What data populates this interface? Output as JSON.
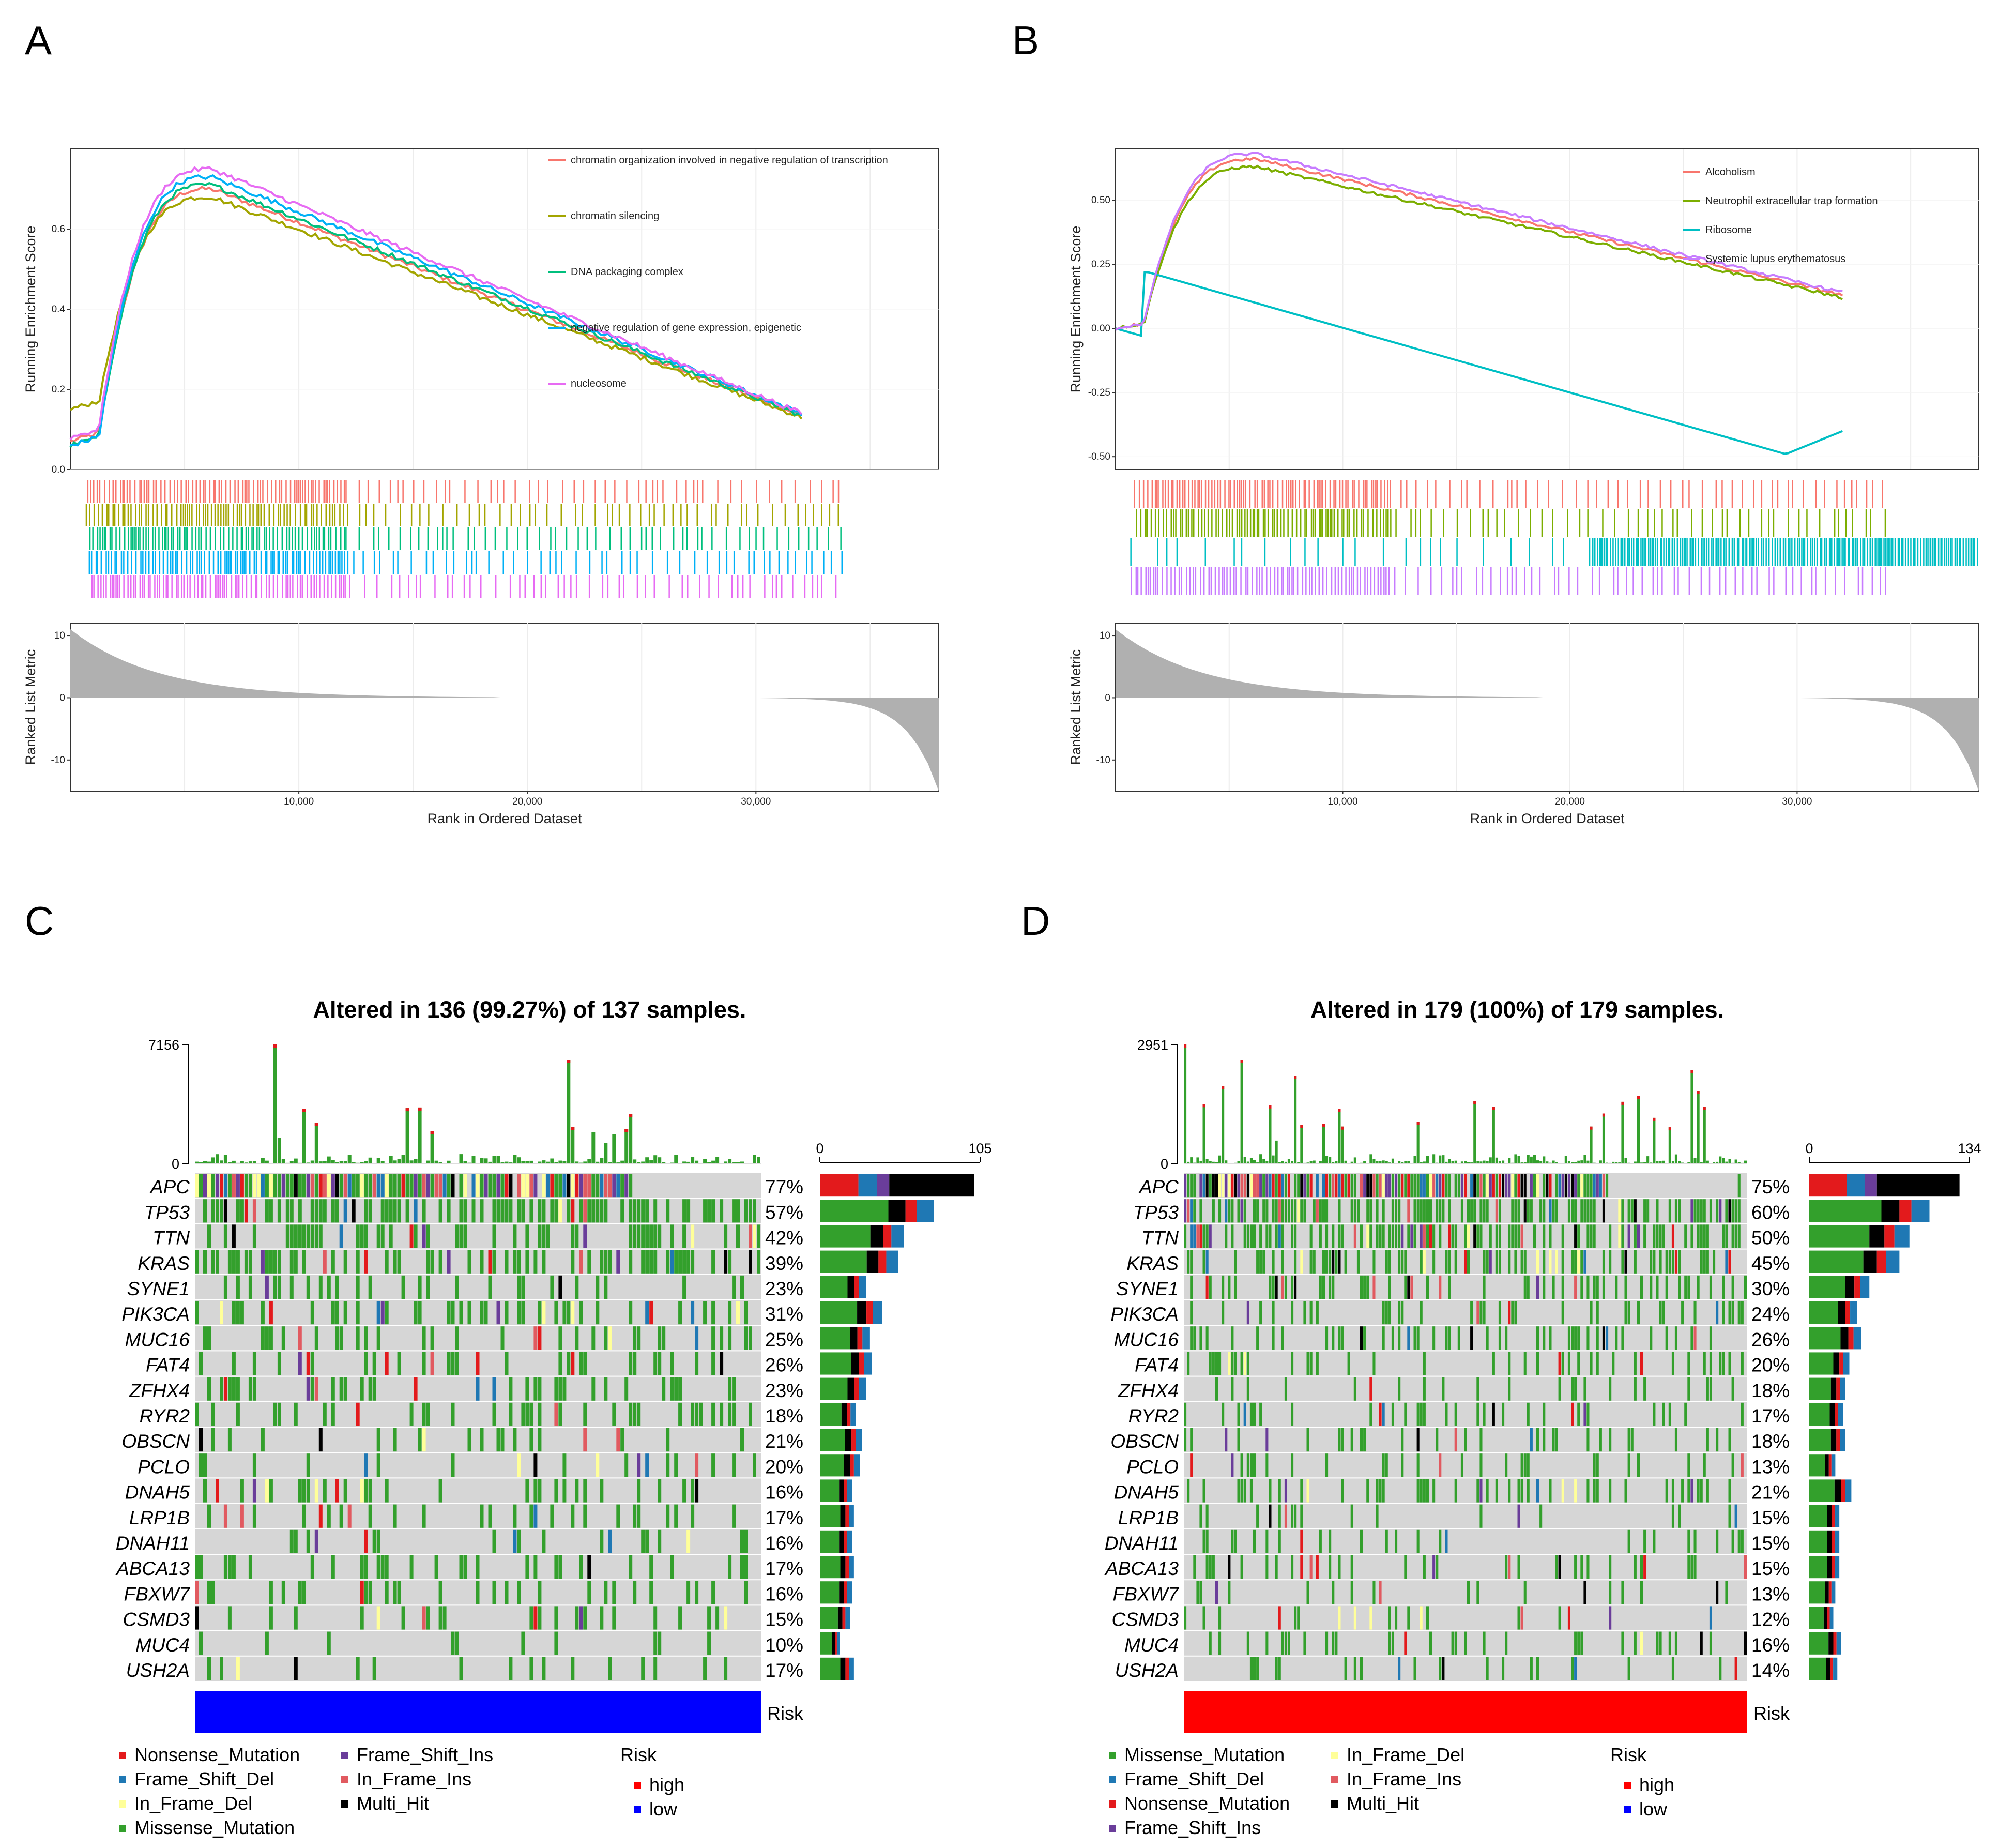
{
  "panel_labels": [
    "A",
    "B",
    "C",
    "D"
  ],
  "chart_data": [
    {
      "type": "line",
      "panel": "A",
      "ylabel": "Running Enrichment Score",
      "xlabel": "Rank in Ordered Dataset",
      "metric_label": "Ranked List Metric",
      "ylim": [
        0,
        0.8
      ],
      "yticks": [
        0.0,
        0.2,
        0.4,
        0.6
      ],
      "ytick_labels": [
        "0.0",
        "0.2",
        "0.4",
        "0.6"
      ],
      "xlim": [
        0,
        38000
      ],
      "xticks": [
        10000,
        20000,
        30000
      ],
      "xtick_labels": [
        "10,000",
        "20,000",
        "30,000"
      ],
      "metric_ylim": [
        -15,
        12
      ],
      "metric_ticks": [
        10,
        0,
        -10
      ],
      "metric_tick_labels": [
        "10",
        "0",
        "-10"
      ],
      "metric_start": 11,
      "metric_end": -15,
      "series": [
        {
          "name": "chromatin organization involved in negative regulation of transcription",
          "color": "#F8766D",
          "peak": 0.7,
          "start": 0.07,
          "end": 0.135
        },
        {
          "name": "chromatin silencing",
          "color": "#A3A500",
          "peak": 0.68,
          "start": 0.15,
          "end": 0.13
        },
        {
          "name": "DNA packaging complex",
          "color": "#00BF7D",
          "peak": 0.71,
          "start": 0.06,
          "end": 0.135
        },
        {
          "name": "negative regulation of gene expression, epigenetic",
          "color": "#00B0F6",
          "peak": 0.73,
          "start": 0.06,
          "end": 0.14
        },
        {
          "name": "nucleosome",
          "color": "#E76BF3",
          "peak": 0.75,
          "start": 0.08,
          "end": 0.14
        }
      ]
    },
    {
      "type": "line",
      "panel": "B",
      "ylabel": "Running Enrichment Score",
      "xlabel": "Rank in Ordered Dataset",
      "metric_label": "Ranked List Metric",
      "ylim": [
        -0.55,
        0.7
      ],
      "yticks": [
        -0.5,
        -0.25,
        0.0,
        0.25,
        0.5
      ],
      "ytick_labels": [
        "-0.50",
        "-0.25",
        "0.00",
        "0.25",
        "0.50"
      ],
      "xlim": [
        0,
        38000
      ],
      "xticks": [
        10000,
        20000,
        30000
      ],
      "xtick_labels": [
        "10,000",
        "20,000",
        "30,000"
      ],
      "metric_ylim": [
        -15,
        12
      ],
      "metric_ticks": [
        10,
        0,
        -10
      ],
      "metric_tick_labels": [
        "10",
        "0",
        "-10"
      ],
      "metric_start": 11,
      "metric_end": -15,
      "series": [
        {
          "name": "Alcoholism",
          "color": "#F8766D",
          "peak": 0.66,
          "end": 0.13
        },
        {
          "name": "Neutrophil extracellular trap formation",
          "color": "#7CAE00",
          "peak": 0.63,
          "end": 0.12
        },
        {
          "name": "Ribosome",
          "color": "#00BFC4",
          "peak": 0.22,
          "min": -0.49,
          "end": -0.4
        },
        {
          "name": "Systemic lupus erythematosus",
          "color": "#C77CFF",
          "peak": 0.68,
          "end": 0.14
        }
      ]
    },
    {
      "type": "heatmap",
      "panel": "C",
      "title": "Altered in 136 (99.27%) of 137 samples.",
      "tmb_max": "7156",
      "tmb_min": "0",
      "bar_max": "105",
      "bar_min": "0",
      "risk_label": "Risk",
      "risk_color": "#0000FF",
      "genes": [
        "APC",
        "TP53",
        "TTN",
        "KRAS",
        "SYNE1",
        "PIK3CA",
        "MUC16",
        "FAT4",
        "ZFHX4",
        "RYR2",
        "OBSCN",
        "PCLO",
        "DNAH5",
        "LRP1B",
        "DNAH11",
        "ABCA13",
        "FBXW7",
        "CSMD3",
        "MUC4",
        "USH2A"
      ],
      "percents": [
        "77%",
        "57%",
        "42%",
        "39%",
        "23%",
        "31%",
        "25%",
        "26%",
        "23%",
        "18%",
        "21%",
        "20%",
        "16%",
        "17%",
        "16%",
        "17%",
        "16%",
        "15%",
        "10%",
        "17%"
      ],
      "legend_items": [
        {
          "label": "Nonsense_Mutation",
          "color": "#E31A1C"
        },
        {
          "label": "Frame_Shift_Ins",
          "color": "#6A3D9A"
        },
        {
          "label": "Frame_Shift_Del",
          "color": "#1F78B4"
        },
        {
          "label": "In_Frame_Ins",
          "color": "#E15A60"
        },
        {
          "label": "In_Frame_Del",
          "color": "#FFFF99"
        },
        {
          "label": "Multi_Hit",
          "color": "#000000"
        },
        {
          "label": "Missense_Mutation",
          "color": "#33A02C"
        }
      ],
      "risk_legend": {
        "title": "Risk",
        "items": [
          {
            "label": "high",
            "color": "#FF0000"
          },
          {
            "label": "low",
            "color": "#0000FF"
          }
        ]
      }
    },
    {
      "type": "heatmap",
      "panel": "D",
      "title": "Altered in 179 (100%) of 179 samples.",
      "tmb_max": "2951",
      "tmb_min": "0",
      "bar_max": "134",
      "bar_min": "0",
      "risk_label": "Risk",
      "risk_color": "#FF0000",
      "genes": [
        "APC",
        "TP53",
        "TTN",
        "KRAS",
        "SYNE1",
        "PIK3CA",
        "MUC16",
        "FAT4",
        "ZFHX4",
        "RYR2",
        "OBSCN",
        "PCLO",
        "DNAH5",
        "LRP1B",
        "DNAH11",
        "ABCA13",
        "FBXW7",
        "CSMD3",
        "MUC4",
        "USH2A"
      ],
      "percents": [
        "75%",
        "60%",
        "50%",
        "45%",
        "30%",
        "24%",
        "26%",
        "20%",
        "18%",
        "17%",
        "18%",
        "13%",
        "21%",
        "15%",
        "15%",
        "15%",
        "13%",
        "12%",
        "16%",
        "14%"
      ],
      "legend_items": [
        {
          "label": "Missense_Mutation",
          "color": "#33A02C"
        },
        {
          "label": "In_Frame_Del",
          "color": "#FFFF99"
        },
        {
          "label": "Frame_Shift_Del",
          "color": "#1F78B4"
        },
        {
          "label": "In_Frame_Ins",
          "color": "#E15A60"
        },
        {
          "label": "Nonsense_Mutation",
          "color": "#E31A1C"
        },
        {
          "label": "Multi_Hit",
          "color": "#000000"
        },
        {
          "label": "Frame_Shift_Ins",
          "color": "#6A3D9A"
        }
      ],
      "risk_legend": {
        "title": "Risk",
        "items": [
          {
            "label": "high",
            "color": "#FF0000"
          },
          {
            "label": "low",
            "color": "#0000FF"
          }
        ]
      }
    }
  ]
}
